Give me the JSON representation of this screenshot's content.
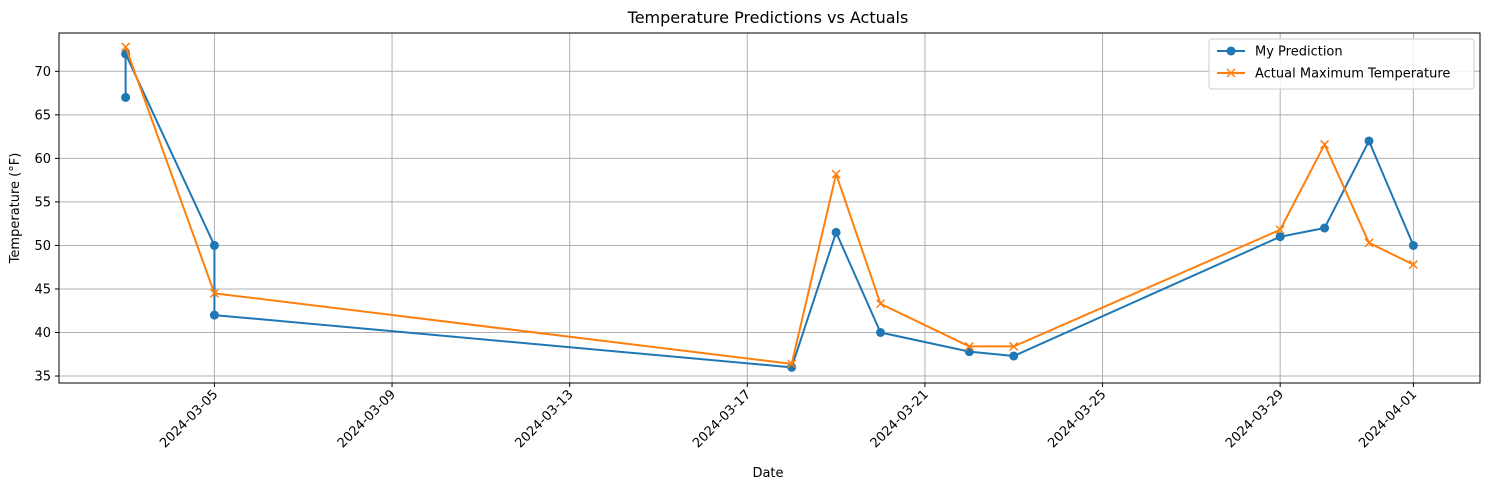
{
  "chart_data": {
    "type": "line",
    "title": "Temperature Predictions vs Actuals",
    "xlabel": "Date",
    "ylabel": "Temperature (°F)",
    "xlim": [
      "2024-03-01T12:00",
      "2024-04-02T12:00"
    ],
    "ylim": [
      34.2,
      74.4
    ],
    "x_ticks": [
      "2024-03-05",
      "2024-03-09",
      "2024-03-13",
      "2024-03-17",
      "2024-03-21",
      "2024-03-25",
      "2024-03-29",
      "2024-04-01"
    ],
    "y_ticks": [
      35,
      40,
      45,
      50,
      55,
      60,
      65,
      70
    ],
    "grid": true,
    "legend_position": "top-right",
    "series": [
      {
        "name": "My Prediction",
        "color": "#1f77b4",
        "marker": "circle",
        "points": [
          {
            "x": "2024-03-03",
            "y": 67
          },
          {
            "x": "2024-03-03",
            "y": 72
          },
          {
            "x": "2024-03-05",
            "y": 50
          },
          {
            "x": "2024-03-05",
            "y": 42
          },
          {
            "x": "2024-03-18",
            "y": 36
          },
          {
            "x": "2024-03-19",
            "y": 51.5
          },
          {
            "x": "2024-03-20",
            "y": 40
          },
          {
            "x": "2024-03-22",
            "y": 37.8
          },
          {
            "x": "2024-03-23",
            "y": 37.3
          },
          {
            "x": "2024-03-29",
            "y": 51
          },
          {
            "x": "2024-03-30",
            "y": 52
          },
          {
            "x": "2024-03-31",
            "y": 62
          },
          {
            "x": "2024-04-01",
            "y": 50
          }
        ]
      },
      {
        "name": "Actual Maximum Temperature",
        "color": "#ff7f0e",
        "marker": "x",
        "points": [
          {
            "x": "2024-03-03",
            "y": 72.8
          },
          {
            "x": "2024-03-05",
            "y": 44.5
          },
          {
            "x": "2024-03-18",
            "y": 36.4
          },
          {
            "x": "2024-03-19",
            "y": 58.2
          },
          {
            "x": "2024-03-20",
            "y": 43.3
          },
          {
            "x": "2024-03-22",
            "y": 38.4
          },
          {
            "x": "2024-03-23",
            "y": 38.4
          },
          {
            "x": "2024-03-29",
            "y": 51.8
          },
          {
            "x": "2024-03-30",
            "y": 61.6
          },
          {
            "x": "2024-03-31",
            "y": 50.3
          },
          {
            "x": "2024-04-01",
            "y": 47.8
          }
        ]
      }
    ]
  }
}
